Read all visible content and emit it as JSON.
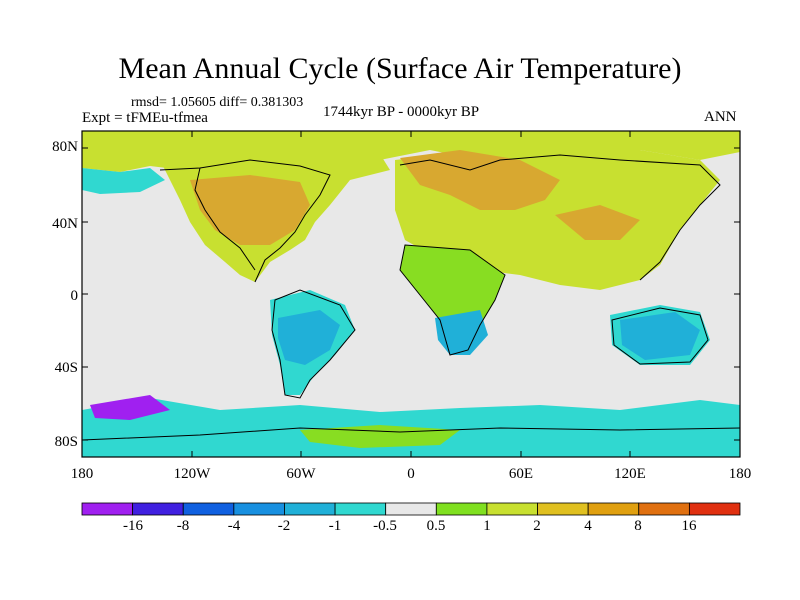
{
  "title": "Mean Annual Cycle (Surface Air Temperature)",
  "stats": "rmsd= 1.05605 diff= 0.381303",
  "experiment": "Expt = tFMEu-tfmea",
  "period": "1744kyr BP - 0000kyr BP",
  "season": "ANN",
  "lat_labels": [
    "80N",
    "40N",
    "0",
    "40S",
    "80S"
  ],
  "lon_labels": [
    "180",
    "120W",
    "60W",
    "0",
    "60E",
    "120E",
    "180"
  ],
  "colorbar": {
    "colors": [
      "#a020f0",
      "#4020e0",
      "#1060e0",
      "#1890e0",
      "#20b0d8",
      "#30d8d0",
      "#e8e8e8",
      "#80e020",
      "#c8e030",
      "#e0c020",
      "#e0a010",
      "#e07010",
      "#e03010"
    ],
    "labels": [
      "-16",
      "-8",
      "-4",
      "-2",
      "-1",
      "-0.5",
      "0.5",
      "1",
      "2",
      "4",
      "8",
      "16"
    ]
  },
  "palette": {
    "neutral": "#e8e8e8",
    "green": "#88dd22",
    "yellowgreen": "#c8e030",
    "orange": "#d8a830",
    "cyan": "#30d8d0",
    "blue": "#20b0d8",
    "purple": "#a020f0",
    "landline": "#000000"
  }
}
